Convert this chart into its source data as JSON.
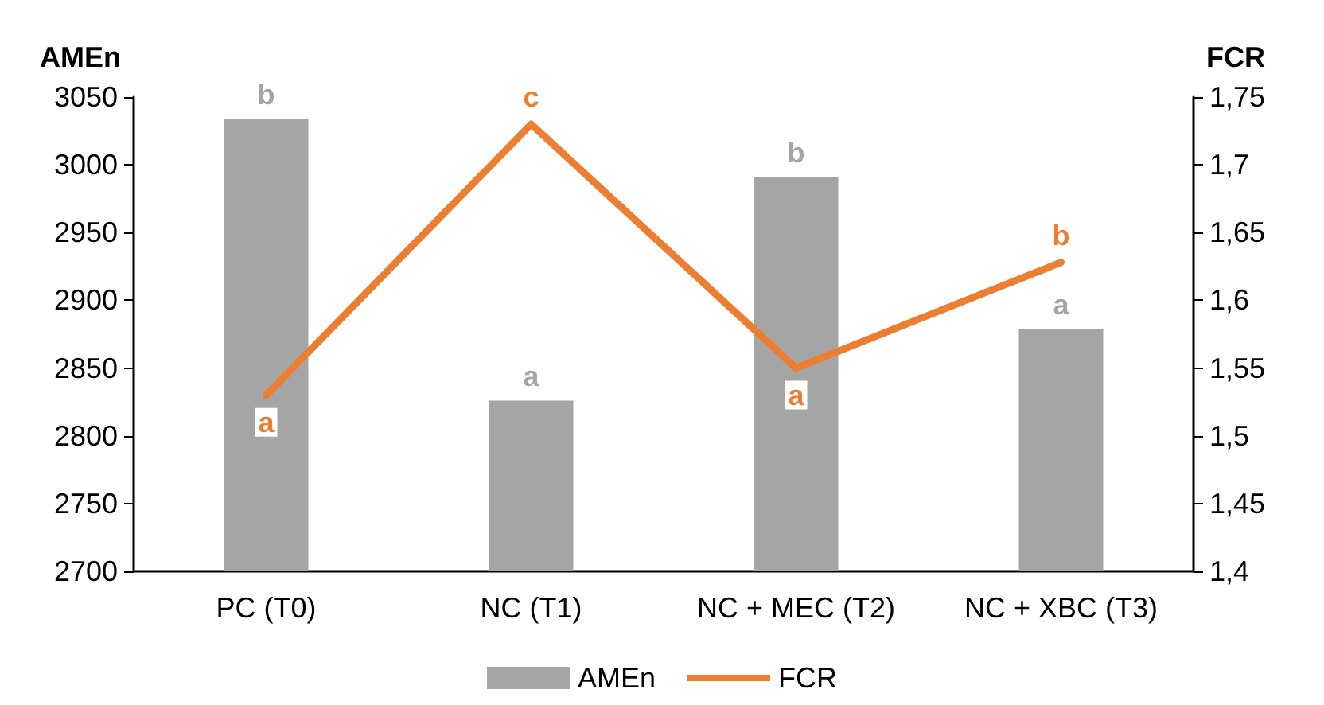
{
  "chart_data": {
    "type": "bar",
    "ylabel": "AMEn",
    "y2label": "FCR",
    "categories": [
      "PC (T0)",
      "NC (T1)",
      "NC + MEC (T2)",
      "NC + XBC (T3)"
    ],
    "series": [
      {
        "name": "AMEn",
        "color": "#a5a5a5",
        "values": [
          3034,
          2826,
          2991,
          2879
        ],
        "value_labels": [
          "b",
          "a",
          "b",
          "a"
        ]
      },
      {
        "name": "FCR",
        "type": "line",
        "axis": "y2",
        "color": "#ed7d31",
        "values": [
          1.53,
          1.73,
          1.55,
          1.628
        ],
        "value_labels": [
          "a",
          "c",
          "a",
          "b"
        ]
      }
    ],
    "ylim": [
      2700,
      3050
    ],
    "yticks": [
      2700,
      2750,
      2800,
      2850,
      2900,
      2950,
      3000,
      3050
    ],
    "y2lim": [
      1.4,
      1.75
    ],
    "y2ticks": [
      {
        "value": 1.4,
        "label": "1,4"
      },
      {
        "value": 1.45,
        "label": "1,45"
      },
      {
        "value": 1.5,
        "label": "1,5"
      },
      {
        "value": 1.55,
        "label": "1,55"
      },
      {
        "value": 1.6,
        "label": "1,6"
      },
      {
        "value": 1.65,
        "label": "1,65"
      },
      {
        "value": 1.7,
        "label": "1,7"
      },
      {
        "value": 1.75,
        "label": "1,75"
      }
    ],
    "grid": false,
    "legend": "bottom",
    "marker": "none"
  }
}
